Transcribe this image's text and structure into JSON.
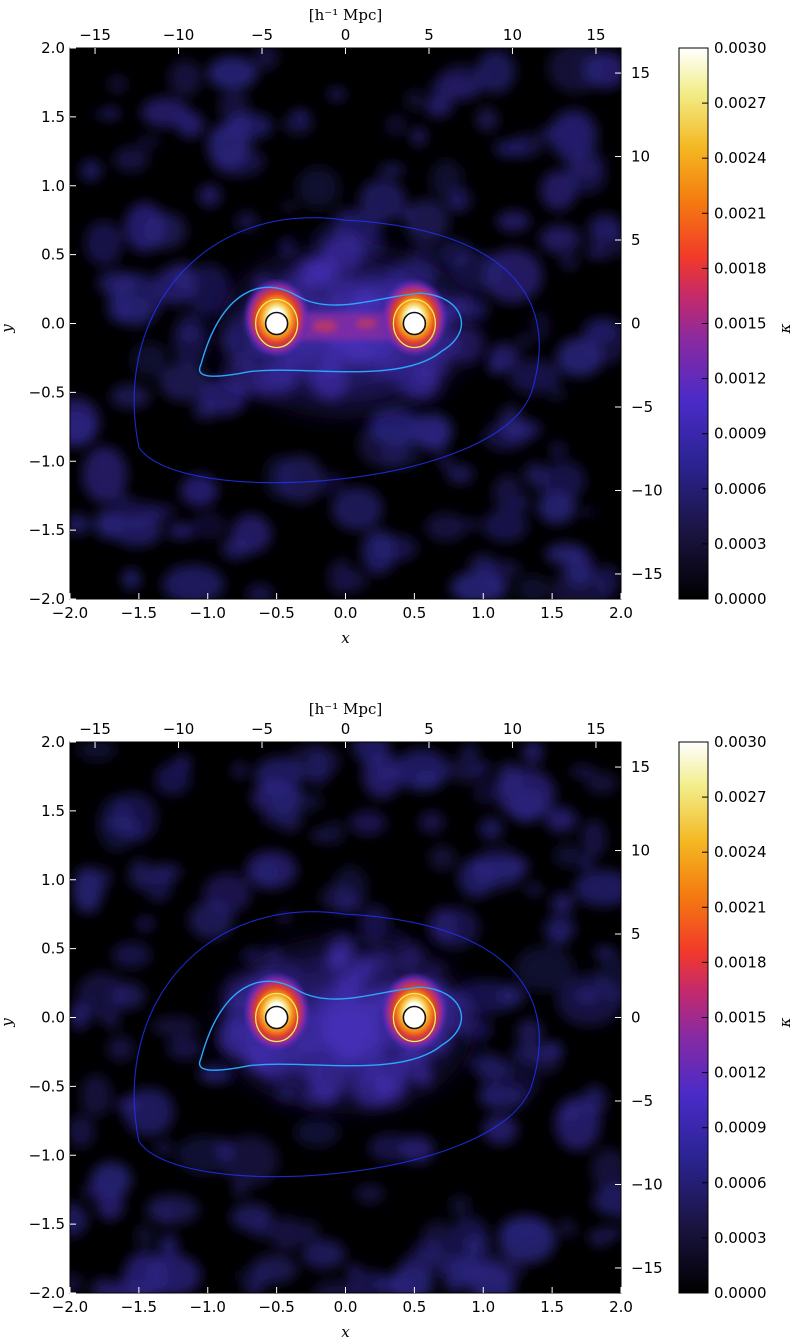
{
  "chart_data": [
    {
      "type": "heatmap",
      "panel": "top",
      "title": "",
      "xlabel": "x",
      "ylabel": "y",
      "xlim": [
        -2.0,
        2.0
      ],
      "ylim": [
        -2.0,
        2.0
      ],
      "xticks": [
        "−2.0",
        "−1.5",
        "−1.0",
        "−0.5",
        "0.0",
        "0.5",
        "1.0",
        "1.5",
        "2.0"
      ],
      "yticks": [
        "−2.0",
        "−1.5",
        "−1.0",
        "−0.5",
        "0.0",
        "0.5",
        "1.0",
        "1.5",
        "2.0"
      ],
      "top_axis_label": "[h⁻¹ Mpc]",
      "top_ticks": [
        "−15",
        "−10",
        "−5",
        "0",
        "5",
        "10",
        "15"
      ],
      "right_ticks": [
        "−15",
        "−10",
        "−5",
        "0",
        "5",
        "10",
        "15"
      ],
      "colorbar_label": "κ",
      "colorbar_range": [
        0.0,
        0.003
      ],
      "colorbar_ticks": [
        "0.0000",
        "0.0003",
        "0.0006",
        "0.0009",
        "0.0012",
        "0.0015",
        "0.0018",
        "0.0021",
        "0.0024",
        "0.0027",
        "0.0030"
      ],
      "peaks": [
        {
          "x": -0.5,
          "y": 0.0,
          "kappa": 0.003
        },
        {
          "x": 0.5,
          "y": 0.0,
          "kappa": 0.003
        }
      ],
      "note_filament": true
    },
    {
      "type": "heatmap",
      "panel": "bottom",
      "title": "",
      "xlabel": "x",
      "ylabel": "y",
      "xlim": [
        -2.0,
        2.0
      ],
      "ylim": [
        -2.0,
        2.0
      ],
      "xticks": [
        "−2.0",
        "−1.5",
        "−1.0",
        "−0.5",
        "0.0",
        "0.5",
        "1.0",
        "1.5",
        "2.0"
      ],
      "yticks": [
        "−2.0",
        "−1.5",
        "−1.0",
        "−0.5",
        "0.0",
        "0.5",
        "1.0",
        "1.5",
        "2.0"
      ],
      "top_axis_label": "[h⁻¹ Mpc]",
      "top_ticks": [
        "−15",
        "−10",
        "−5",
        "0",
        "5",
        "10",
        "15"
      ],
      "right_ticks": [
        "−15",
        "−10",
        "−5",
        "0",
        "5",
        "10",
        "15"
      ],
      "colorbar_label": "κ",
      "colorbar_range": [
        0.0,
        0.003
      ],
      "colorbar_ticks": [
        "0.0000",
        "0.0003",
        "0.0006",
        "0.0009",
        "0.0012",
        "0.0015",
        "0.0018",
        "0.0021",
        "0.0024",
        "0.0027",
        "0.0030"
      ],
      "peaks": [
        {
          "x": -0.5,
          "y": 0.0,
          "kappa": 0.003
        },
        {
          "x": 0.5,
          "y": 0.0,
          "kappa": 0.003
        }
      ],
      "note_filament": false
    }
  ],
  "colors": {
    "background": "#000000",
    "low_halo": "#241a6e",
    "mid": "#7b2fb0",
    "orange": "#e86a1a",
    "peak": "#ffffff",
    "contour_blue": "#2233ff",
    "contour_cyan": "#2aa8ff",
    "contour_yellow": "#f2f055"
  }
}
